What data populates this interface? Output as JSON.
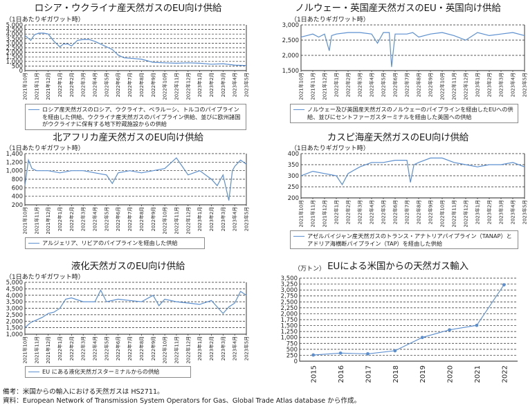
{
  "notes": [
    "備考：米国からの輸入における天然ガスは HS2711。",
    "資料：European Network of Transmission System Operators for Gas、Global Trade Atlas database から作成。"
  ],
  "chart_data": [
    {
      "type": "line",
      "title": "ロシア・ウクライナ産天然ガスのEU向け供給",
      "ylabel": "（1日あたりギガワット時）",
      "ylim": [
        0,
        5000
      ],
      "yticks": [
        "0",
        "500",
        "1,000",
        "1,500",
        "2,000",
        "2,500",
        "3,000",
        "3,500",
        "4,000",
        "4,500",
        "5,000"
      ],
      "yticks_values": [
        0,
        500,
        1000,
        1500,
        2000,
        2500,
        3000,
        3500,
        4000,
        4500,
        5000
      ],
      "xticks": [
        "2021年10月",
        "2021年11月",
        "2021年12月",
        "2022年1月",
        "2022年2月",
        "2022年3月",
        "2022年4月",
        "2022年5月",
        "2022年6月",
        "2022年7月",
        "2022年8月",
        "2022年9月",
        "2022年10月",
        "2022年11月",
        "2022年12月",
        "2023年1月",
        "2023年2月",
        "2023年3月",
        "2023年4月",
        "2023年5月"
      ],
      "grid": true,
      "legend_position": "bottom",
      "series": [
        {
          "name": "ロシア産天然ガスのロシア、ウクライナ、ベラルーシ、トルコのパイプラインを経由した供給、ウクライナ産天然ガスのパイプライン供給、並びに欧州諸国がウクライナに保有する地下貯蔵施設からの供給",
          "x": [
            0,
            0.5,
            0.8,
            1.2,
            1.6,
            2,
            2.5,
            3,
            3.3,
            3.7,
            4,
            4.5,
            5,
            5.5,
            6,
            6.5,
            7,
            7.5,
            8,
            8.5,
            9,
            10,
            11,
            12,
            13,
            14,
            15,
            16,
            17,
            18,
            19
          ],
          "values": [
            3850,
            3300,
            3900,
            4100,
            4100,
            4000,
            3200,
            2600,
            2900,
            2900,
            2700,
            3300,
            3400,
            3400,
            3200,
            2900,
            2600,
            2300,
            1700,
            1400,
            1350,
            1250,
            900,
            850,
            800,
            850,
            800,
            700,
            750,
            600,
            550
          ]
        }
      ]
    },
    {
      "type": "line",
      "title": "ノルウェー・英国産天然ガスのEU・英国向け供給",
      "ylabel": "（1日あたりギガワット時）",
      "ylim": [
        1500,
        3000
      ],
      "yticks": [
        "1,500",
        "2,000",
        "2,500",
        "3,000"
      ],
      "yticks_values": [
        1500,
        2000,
        2500,
        3000
      ],
      "xticks": [
        "2021年10月",
        "2021年11月",
        "2021年12月",
        "2022年1月",
        "2022年2月",
        "2022年3月",
        "2022年4月",
        "2022年5月",
        "2022年6月",
        "2022年7月",
        "2022年8月",
        "2022年9月",
        "2022年10月",
        "2022年11月",
        "2022年12月",
        "2023年1月",
        "2023年2月",
        "2023年3月",
        "2023年4月",
        "2023年5月"
      ],
      "grid": true,
      "legend_position": "bottom",
      "series": [
        {
          "name": "ノルウェー及び英国産天然ガスのノルウェーのパイプラインを経由したEUへの供給、並びにセントファーガスターミナルを経由した英国への供給",
          "x": [
            0,
            0.5,
            1,
            1.5,
            2,
            2.4,
            2.6,
            3,
            4,
            5,
            6,
            6.5,
            7,
            7.5,
            7.7,
            8,
            9,
            9.5,
            10,
            11,
            12,
            13,
            14,
            15,
            16,
            17,
            18,
            19
          ],
          "values": [
            2600,
            2650,
            2700,
            2600,
            2700,
            2150,
            2650,
            2700,
            2750,
            2750,
            2700,
            2400,
            2750,
            2750,
            1620,
            2700,
            2700,
            2750,
            2600,
            2700,
            2750,
            2650,
            2500,
            2750,
            2650,
            2700,
            2750,
            2650
          ]
        }
      ]
    },
    {
      "type": "line",
      "title": "北アフリカ産天然ガスのEU向け供給",
      "ylabel": "（1日あたりギガワット時）",
      "ylim": [
        200,
        1400
      ],
      "yticks": [
        "200",
        "400",
        "600",
        "800",
        "1,000",
        "1,200",
        "1,400"
      ],
      "yticks_values": [
        200,
        400,
        600,
        800,
        1000,
        1200,
        1400
      ],
      "xticks": [
        "2021年10月",
        "2021年11月",
        "2021年12月",
        "2022年1月",
        "2022年2月",
        "2022年3月",
        "2022年4月",
        "2022年5月",
        "2022年6月",
        "2022年7月",
        "2022年8月",
        "2022年9月",
        "2022年10月",
        "2022年11月",
        "2022年12月",
        "2023年1月",
        "2023年2月",
        "2023年3月",
        "2023年4月",
        "2023年5月"
      ],
      "grid": true,
      "legend_position": "bottom",
      "series": [
        {
          "name": "アルジェリア、リビアのパイプラインを経由した供給",
          "x": [
            0,
            0.3,
            0.6,
            1,
            2,
            3,
            4,
            5,
            6,
            7,
            7.5,
            8,
            9,
            10,
            11,
            12,
            13,
            13.5,
            14,
            15,
            16,
            16.5,
            17,
            17.5,
            17.8,
            18,
            18.5,
            19
          ],
          "values": [
            650,
            1250,
            1050,
            1000,
            1000,
            950,
            1000,
            1000,
            950,
            900,
            700,
            950,
            1000,
            950,
            1000,
            1050,
            1300,
            1100,
            900,
            1000,
            800,
            650,
            900,
            300,
            1000,
            1100,
            1250,
            1150
          ]
        }
      ]
    },
    {
      "type": "line",
      "title": "カスピ海産天然ガスのEU向け供給",
      "ylabel": "（1日あたりギガワット時）",
      "ylim": [
        200,
        400
      ],
      "yticks": [
        "200",
        "250",
        "300",
        "350",
        "400"
      ],
      "yticks_values": [
        200,
        250,
        300,
        350,
        400
      ],
      "xticks": [
        "2021年10月",
        "2021年11月",
        "2021年12月",
        "2022年1月",
        "2022年2月",
        "2022年3月",
        "2022年4月",
        "2022年5月",
        "2022年6月",
        "2022年7月",
        "2022年8月",
        "2022年9月",
        "2022年10月",
        "2022年11月",
        "2022年12月",
        "2023年1月",
        "2023年2月",
        "2023年3月",
        "2023年4月",
        "2023年5月"
      ],
      "grid": true,
      "legend_position": "bottom",
      "series": [
        {
          "name": "アゼルバイジャン産天然ガスのトランス・アナトリアパイプライン（TANAP）とアドリア海横断パイプライン（TAP）を経由した供給",
          "x": [
            0,
            0.5,
            1,
            2,
            3,
            3.5,
            4,
            5,
            6,
            7,
            8,
            9,
            9.3,
            9.6,
            10,
            11,
            12,
            13,
            14,
            15,
            16,
            17,
            18,
            19
          ],
          "values": [
            300,
            310,
            320,
            310,
            300,
            260,
            310,
            340,
            360,
            360,
            370,
            370,
            270,
            350,
            360,
            380,
            380,
            360,
            350,
            340,
            350,
            350,
            360,
            340
          ]
        }
      ]
    },
    {
      "type": "line",
      "title": "液化天然ガスのEU向け供給",
      "ylabel": "（1日あたりギガワット時）",
      "ylim": [
        1000,
        5000
      ],
      "yticks": [
        "1,000",
        "1,500",
        "2,000",
        "2,500",
        "3,000",
        "3,500",
        "4,000",
        "4,500",
        "5,000"
      ],
      "yticks_values": [
        1000,
        1500,
        2000,
        2500,
        3000,
        3500,
        4000,
        4500,
        5000
      ],
      "xticks": [
        "2021年10月",
        "2021年11月",
        "2021年12月",
        "2022年1月",
        "2022年2月",
        "2022年3月",
        "2022年4月",
        "2022年5月",
        "2022年6月",
        "2022年7月",
        "2022年8月",
        "2022年9月",
        "2022年10月",
        "2022年11月",
        "2022年12月",
        "2023年1月",
        "2023年2月",
        "2023年3月",
        "2023年4月",
        "2023年5月"
      ],
      "grid": true,
      "legend_position": "bottom",
      "series": [
        {
          "name": "EU にある液化天然ガスターミナルからの供給",
          "x": [
            0,
            0.5,
            1,
            1.5,
            2,
            2.5,
            3,
            3.5,
            4,
            5,
            6,
            6.5,
            7,
            8,
            9,
            10,
            11,
            11.5,
            12,
            13,
            14,
            15,
            16,
            16.5,
            17,
            17.5,
            18,
            18.5,
            19
          ],
          "values": [
            1500,
            1900,
            2100,
            2300,
            2600,
            2700,
            3000,
            3700,
            3800,
            3500,
            3500,
            4400,
            3500,
            3700,
            3600,
            3500,
            4000,
            3200,
            3700,
            3500,
            3400,
            3300,
            3600,
            3100,
            2600,
            3100,
            3400,
            4300,
            4000
          ]
        }
      ]
    },
    {
      "type": "line",
      "title": "EUによる米国からの天然ガス輸入",
      "ylabel": "（万トン）",
      "ylim": [
        0,
        3500
      ],
      "yticks": [
        "0",
        "250",
        "500",
        "750",
        "1,000",
        "1,250",
        "1,500",
        "1,750",
        "2,000",
        "2,250",
        "2,500",
        "2,750",
        "3,000",
        "3,250",
        "3,500"
      ],
      "yticks_values": [
        0,
        250,
        500,
        750,
        1000,
        1250,
        1500,
        1750,
        2000,
        2250,
        2500,
        2750,
        3000,
        3250,
        3500
      ],
      "xticks": [
        "2015",
        "2016",
        "2017",
        "2018",
        "2019",
        "2020",
        "2021",
        "2022"
      ],
      "grid": true,
      "markers": true,
      "series": [
        {
          "x": [
            2015,
            2016,
            2017,
            2018,
            2019,
            2020,
            2021,
            2022
          ],
          "values": [
            260,
            340,
            310,
            440,
            1000,
            1320,
            1510,
            3220
          ]
        }
      ]
    }
  ]
}
